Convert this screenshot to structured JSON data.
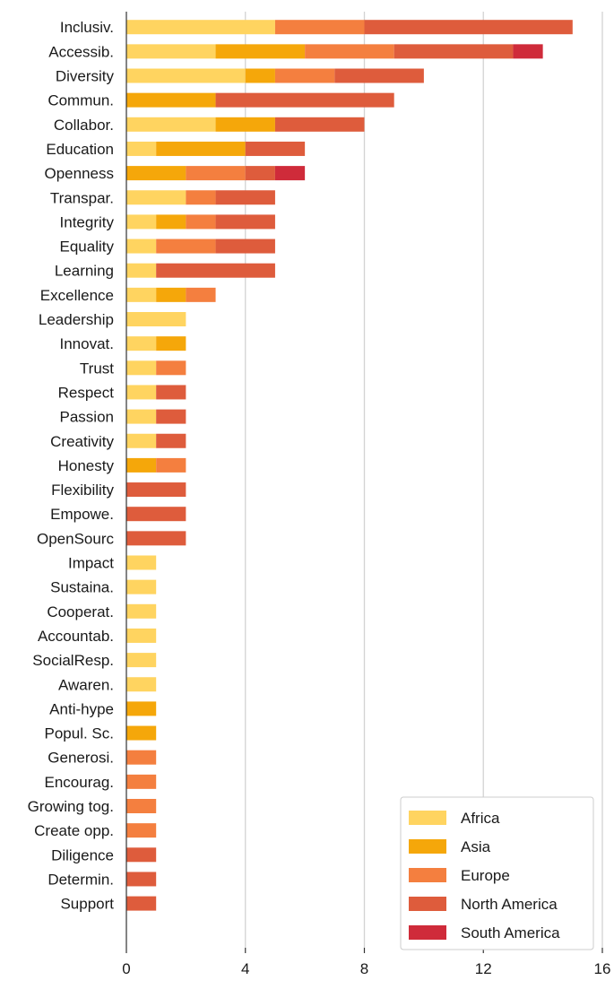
{
  "chart_data": {
    "type": "bar",
    "orientation": "horizontal",
    "stacked": true,
    "title": "",
    "xlabel": "",
    "ylabel": "",
    "xlim": [
      0,
      16
    ],
    "xticks": [
      0,
      4,
      8,
      12,
      16
    ],
    "grid": "vertical",
    "legend_position": "bottom-right",
    "categories": [
      "Inclusiv.",
      "Accessib.",
      "Diversity",
      "Commun.",
      "Collabor.",
      "Education",
      "Openness",
      "Transpar.",
      "Integrity",
      "Equality",
      "Learning",
      "Excellence",
      "Leadership",
      "Innovat.",
      "Trust",
      "Respect",
      "Passion",
      "Creativity",
      "Honesty",
      "Flexibility",
      "Empowe.",
      "OpenSourc",
      "Impact",
      "Sustaina.",
      "Cooperat.",
      "Accountab.",
      "SocialResp.",
      "Awaren.",
      "Anti-hype",
      "Popul. Sc.",
      "Generosi.",
      "Encourag.",
      "Growing tog.",
      "Create opp.",
      "Diligence",
      "Determin.",
      "Support"
    ],
    "series": [
      {
        "name": "Africa",
        "color": "#FFD460",
        "values": [
          5,
          3,
          4,
          0,
          3,
          1,
          0,
          2,
          1,
          1,
          1,
          1,
          2,
          1,
          1,
          1,
          1,
          1,
          0,
          0,
          0,
          0,
          1,
          1,
          1,
          1,
          1,
          1,
          0,
          0,
          0,
          0,
          0,
          0,
          0,
          0,
          0
        ]
      },
      {
        "name": "Asia",
        "color": "#F5A70A",
        "values": [
          0,
          3,
          1,
          3,
          2,
          3,
          2,
          0,
          1,
          0,
          0,
          1,
          0,
          1,
          0,
          0,
          0,
          0,
          1,
          0,
          0,
          0,
          0,
          0,
          0,
          0,
          0,
          0,
          1,
          1,
          0,
          0,
          0,
          0,
          0,
          0,
          0
        ]
      },
      {
        "name": "Europe",
        "color": "#F47F3F",
        "values": [
          3,
          3,
          2,
          0,
          0,
          0,
          2,
          1,
          1,
          2,
          0,
          1,
          0,
          0,
          1,
          0,
          0,
          0,
          1,
          0,
          0,
          0,
          0,
          0,
          0,
          0,
          0,
          0,
          0,
          0,
          1,
          1,
          1,
          1,
          0,
          0,
          0
        ]
      },
      {
        "name": "North America",
        "color": "#DE5C3C",
        "values": [
          7,
          4,
          3,
          6,
          3,
          2,
          1,
          2,
          2,
          2,
          4,
          0,
          0,
          0,
          0,
          1,
          1,
          1,
          0,
          2,
          2,
          2,
          0,
          0,
          0,
          0,
          0,
          0,
          0,
          0,
          0,
          0,
          0,
          0,
          1,
          1,
          1
        ]
      },
      {
        "name": "South America",
        "color": "#CF2B3A",
        "values": [
          0,
          1,
          0,
          0,
          0,
          0,
          1,
          0,
          0,
          0,
          0,
          0,
          0,
          0,
          0,
          0,
          0,
          0,
          0,
          0,
          0,
          0,
          0,
          0,
          0,
          0,
          0,
          0,
          0,
          0,
          0,
          0,
          0,
          0,
          0,
          0,
          0
        ]
      }
    ]
  }
}
